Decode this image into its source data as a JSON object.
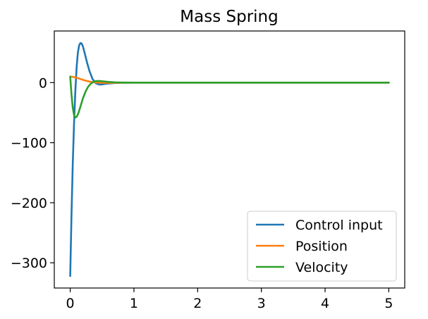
{
  "chart_data": {
    "type": "line",
    "title": "Mass Spring",
    "xlabel": "",
    "ylabel": "",
    "xlim": [
      -0.25,
      5.25
    ],
    "ylim": [
      -342,
      86
    ],
    "xticks": [
      0,
      1,
      2,
      3,
      4,
      5
    ],
    "xtick_labels": [
      "0",
      "1",
      "2",
      "3",
      "4",
      "5"
    ],
    "yticks": [
      0,
      -100,
      -200,
      -300
    ],
    "ytick_labels": [
      "0",
      "−100",
      "−200",
      "−300"
    ],
    "grid": false,
    "legend_position": "lower-right",
    "series": [
      {
        "name": "Control input",
        "color": "#1f77b4",
        "x": [
          0,
          0.02,
          0.04,
          0.06,
          0.08,
          0.1,
          0.12,
          0.14,
          0.16,
          0.18,
          0.2,
          0.23,
          0.26,
          0.3,
          0.35,
          0.4,
          0.45,
          0.5,
          0.55,
          0.6,
          0.7,
          0.8,
          1.0,
          1.5,
          2,
          3,
          4,
          5
        ],
        "y": [
          -322,
          -220,
          -135,
          -68,
          -15,
          25,
          50,
          62,
          66,
          65,
          60,
          48,
          35,
          20,
          6,
          -1,
          -3,
          -3,
          -2,
          -1.5,
          -0.6,
          -0.2,
          0,
          0,
          0,
          0,
          0,
          0
        ]
      },
      {
        "name": "Position",
        "color": "#ff7f0e",
        "x": [
          0,
          0.05,
          0.1,
          0.15,
          0.2,
          0.25,
          0.3,
          0.35,
          0.4,
          0.45,
          0.5,
          0.6,
          0.8,
          1.0,
          2,
          3,
          4,
          5
        ],
        "y": [
          10,
          9.5,
          8.2,
          6.5,
          4.6,
          3.0,
          1.8,
          0.9,
          0.3,
          0,
          -0.3,
          -0.4,
          -0.2,
          0,
          0,
          0,
          0,
          0
        ]
      },
      {
        "name": "Velocity",
        "color": "#2ca02c",
        "x": [
          0,
          0.02,
          0.04,
          0.06,
          0.08,
          0.1,
          0.12,
          0.14,
          0.16,
          0.18,
          0.2,
          0.24,
          0.28,
          0.32,
          0.36,
          0.4,
          0.45,
          0.5,
          0.6,
          0.7,
          0.8,
          1.0,
          1.5,
          2,
          3,
          4,
          5
        ],
        "y": [
          10,
          -20,
          -42,
          -54,
          -58,
          -57,
          -53,
          -47,
          -40,
          -33,
          -26,
          -15,
          -7,
          -2,
          1,
          2.5,
          2.8,
          2.3,
          1.2,
          0.5,
          0.2,
          0,
          0,
          0,
          0,
          0,
          0
        ]
      }
    ]
  }
}
